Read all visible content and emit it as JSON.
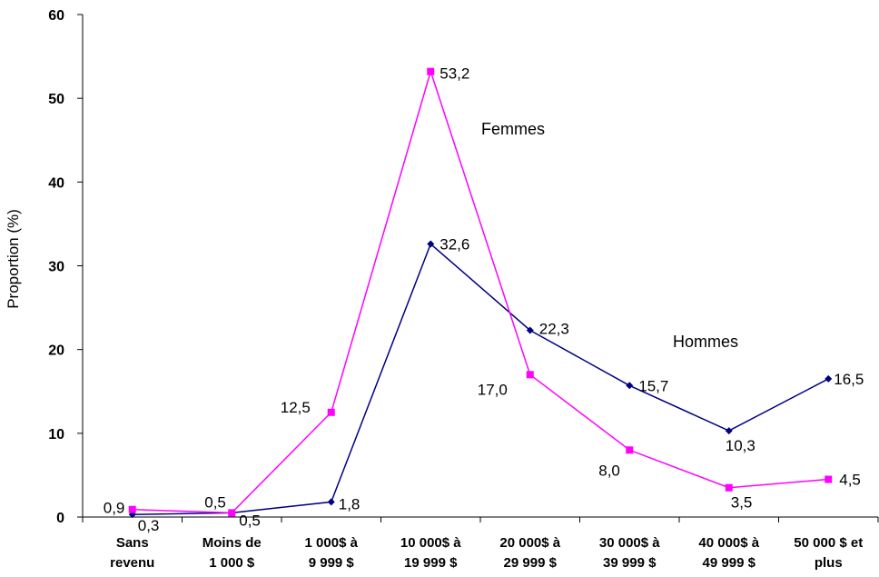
{
  "chart_data": {
    "type": "line",
    "categories": [
      [
        "Sans",
        "revenu"
      ],
      [
        "Moins de",
        "1 000 $"
      ],
      [
        "1 000$ à",
        "9 999 $"
      ],
      [
        "10 000$ à",
        "19 999 $"
      ],
      [
        "20 000$ à",
        "29 999 $"
      ],
      [
        "30 000$ à",
        "39 999 $"
      ],
      [
        "40 000$ à",
        "49 999 $"
      ],
      [
        "50 000 $ et",
        "plus"
      ]
    ],
    "series": [
      {
        "name": "Hommes",
        "color": "#000080",
        "marker": "diamond",
        "values": [
          0.3,
          0.5,
          1.8,
          32.6,
          22.3,
          15.7,
          10.3,
          16.5
        ],
        "labels": [
          "0,3",
          "0,5",
          "1,8",
          "32,6",
          "22,3",
          "15,7",
          "10,3",
          "16,5"
        ]
      },
      {
        "name": "Femmes",
        "color": "#FF00FF",
        "marker": "square",
        "values": [
          0.9,
          0.5,
          12.5,
          53.2,
          17.0,
          8.0,
          3.5,
          4.5
        ],
        "labels": [
          "0,9",
          "0,5",
          "12,5",
          "53,2",
          "17,0",
          "8,0",
          "3,5",
          "4,5"
        ]
      }
    ],
    "ylabel": "Proportion (%)",
    "xlabel": "",
    "ylim": [
      0,
      60
    ],
    "yticks": [
      0,
      10,
      20,
      30,
      40,
      50,
      60
    ],
    "grid": false,
    "legend": "none"
  }
}
